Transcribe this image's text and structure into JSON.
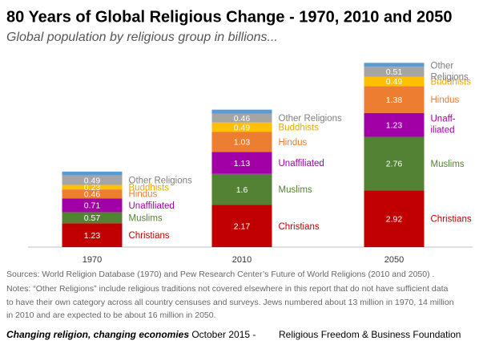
{
  "chart_data": {
    "type": "stacked_bar",
    "title": "80 Years of Global Religious Change - 1970, 2010 and 2050",
    "subtitle": "Global population by religious group in billions...",
    "categories": [
      "1970",
      "2010",
      "2050"
    ],
    "series": [
      {
        "name": "Christians",
        "color": "#c00000",
        "text_color": "#c00000",
        "values": [
          1.23,
          2.17,
          2.92
        ]
      },
      {
        "name": "Muslims",
        "color": "#548235",
        "text_color": "#548235",
        "values": [
          0.57,
          1.6,
          2.76
        ]
      },
      {
        "name": "Unaffiliated",
        "color": "#a100a6",
        "text_color": "#a100a6",
        "values": [
          0.71,
          1.13,
          1.23
        ],
        "label_lines_last": [
          "Unaff-",
          "iliated"
        ]
      },
      {
        "name": "Hindus",
        "color": "#ed7d31",
        "text_color": "#ed7d31",
        "values": [
          0.46,
          1.03,
          1.38
        ]
      },
      {
        "name": "Buddhists",
        "color": "#ffc000",
        "text_color": "#e6a800",
        "values": [
          0.23,
          0.49,
          0.49
        ]
      },
      {
        "name": "Other Religions",
        "color": "#a5a5a5",
        "text_color": "#7f7f7f",
        "values": [
          0.49,
          0.46,
          0.51
        ],
        "label_lines_last": [
          "Other",
          "Religions"
        ]
      },
      {
        "color": "#5b9bd5",
        "values": [
          0.2,
          0.2,
          0.2
        ]
      }
    ],
    "notes": [
      "Sources: World Religion Database (1970) and Pew Research Center’s Future of World Religions (2010 and 2050) .",
      "Notes: “Other Religions” include religious traditions not covered elsewhere in this report that do not have sufficient data",
      "to have their own category across all country censuses and surveys. Jews numbered  about 13 million in 1970, 14 million",
      "in 2010 and are expected to be about 16 million in 2050."
    ],
    "footer": {
      "tagline": "Changing religion, changing economies",
      "date": "-  October 2015  -",
      "organization": "Religious Freedom & Business Foundation"
    }
  }
}
